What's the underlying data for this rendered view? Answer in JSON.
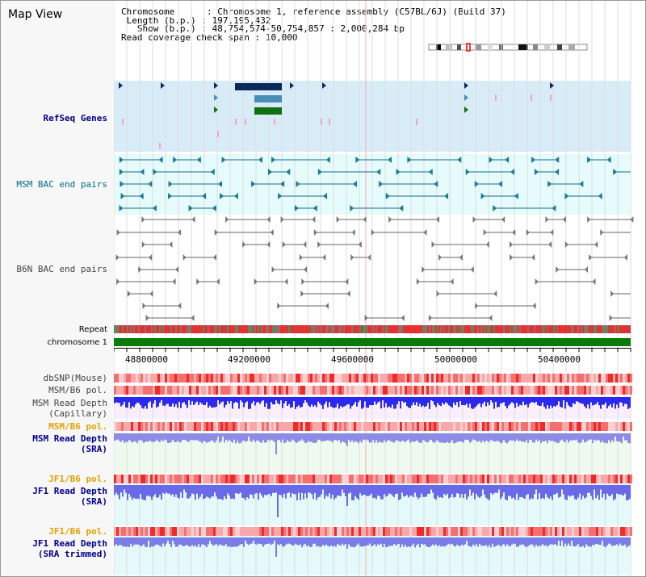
{
  "title": "Map View",
  "info": {
    "chromosome_label": "Chromosome",
    "chromosome_value": ": Chromosome 1, reference assembly (C57BL/6J) (Build 37)",
    "length_label": "Length (b.p.)",
    "length_value": ": 197,195,432",
    "show_label": "Show (b.p.)",
    "show_value": ": 48,754,574-50,754,857 : 2,000,284 bp",
    "span_label": "Read coverage check span",
    "span_value": ": 10,000"
  },
  "tracks": {
    "refseq": "RefSeq Genes",
    "msm_bac": "MSM BAC end pairs",
    "b6n_bac": "B6N BAC end pairs",
    "repeat": "Repeat",
    "chromosome": "chromosome 1",
    "dbsnp": "dbSNP(Mouse)",
    "msm_b6_pol_1": "MSM/B6 pol.",
    "msm_read_depth_cap_1": "MSM Read Depth",
    "msm_read_depth_cap_2": "(Capillary)",
    "msm_b6_pol_2": "MSM/B6 pol.",
    "msm_read_depth_sra_1": "MSM Read Depth",
    "msm_read_depth_sra_2": "(SRA)",
    "jf1_b6_pol_1": "JF1/B6 pol.",
    "jf1_read_depth_sra_1": "JF1 Read Depth",
    "jf1_read_depth_sra_2": "(SRA)",
    "jf1_b6_pol_2": "JF1/B6 pol.",
    "jf1_read_depth_trim_1": "JF1 Read Depth",
    "jf1_read_depth_trim_2": "(SRA trimmed)"
  },
  "ruler_ticks": [
    "48800000",
    "49200000",
    "49600000",
    "50000000",
    "50400000"
  ],
  "colors": {
    "refseq_bg": "#d8ecf8",
    "bac_bg": "#e6fbfb",
    "gene_dark": "#0a2a5c",
    "gene_mid": "#4a8db8",
    "gene_green": "#107010",
    "chrom_green": "#0a7a0a",
    "msm_depth": "#2a2ad8",
    "sra_depth": "#8a8ae8",
    "pol_red": "#f04040"
  }
}
